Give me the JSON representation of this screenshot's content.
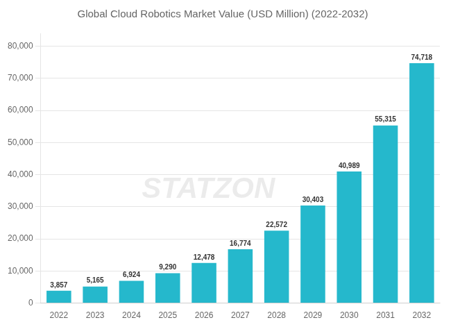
{
  "chart_data": {
    "type": "bar",
    "title": "Global Cloud Robotics Market Value (USD Million) (2022-2032)",
    "categories": [
      "2022",
      "2023",
      "2024",
      "2025",
      "2026",
      "2027",
      "2028",
      "2029",
      "2030",
      "2031",
      "2032"
    ],
    "values": [
      3857,
      5165,
      6924,
      9290,
      12478,
      16774,
      22572,
      30403,
      40989,
      55315,
      74718
    ],
    "value_labels": [
      "3,857",
      "5,165",
      "6,924",
      "9,290",
      "12,478",
      "16,774",
      "22,572",
      "30,403",
      "40,989",
      "55,315",
      "74,718"
    ],
    "data_labels": true,
    "color": "#25B8CC",
    "ylim": [
      0,
      84000
    ],
    "yticks": [
      0,
      {
        "value": 10000,
        "label": "10,000"
      },
      {
        "value": 20000,
        "label": "20,000"
      },
      {
        "value": 30000,
        "label": "30,000"
      },
      {
        "value": 40000,
        "label": "40,000"
      },
      {
        "value": 50000,
        "label": "50,000"
      },
      {
        "value": 60000,
        "label": "60,000"
      },
      {
        "value": 70000,
        "label": "70,000"
      },
      {
        "value": 80000,
        "label": "80,000"
      }
    ],
    "grid": true,
    "annotations": [
      "STATZON"
    ]
  }
}
